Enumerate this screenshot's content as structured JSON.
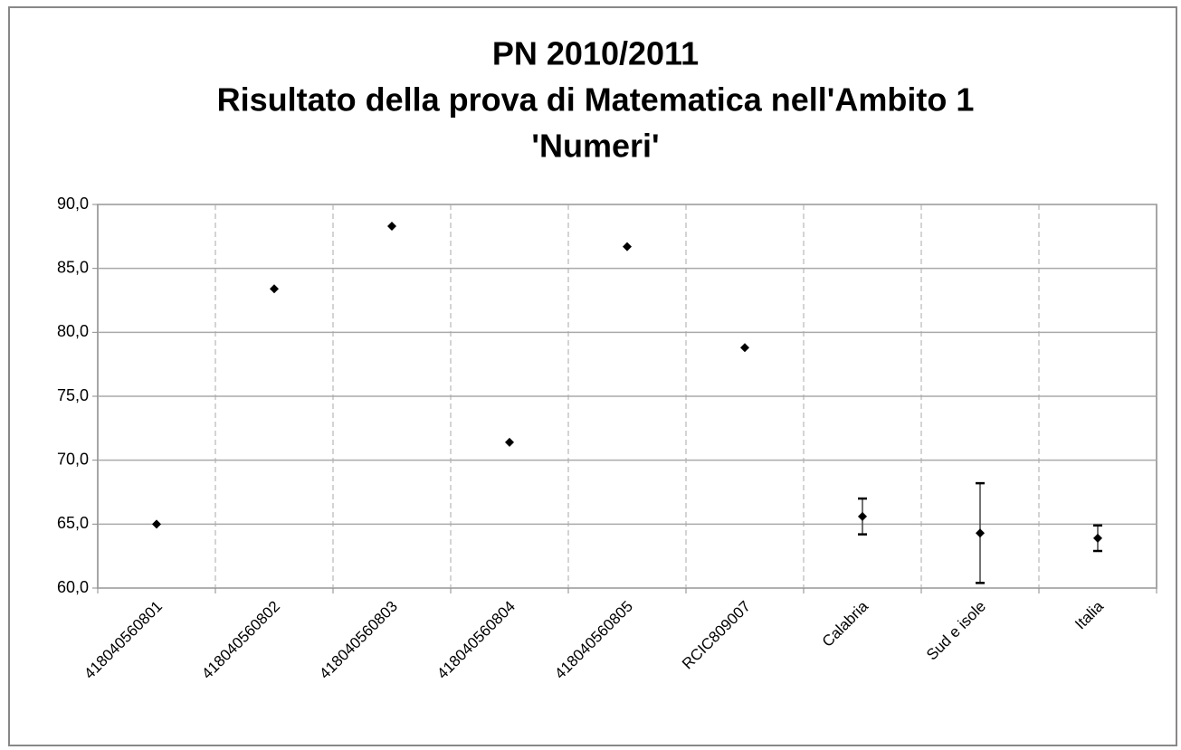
{
  "chart_data": {
    "type": "scatter",
    "title": [
      "PN 2010/2011",
      "Risultato della prova di Matematica nell'Ambito 1",
      "'Numeri'"
    ],
    "categories": [
      "418040560801",
      "418040560802",
      "418040560803",
      "418040560804",
      "418040560805",
      "RCIC809007",
      "Calabria",
      "Sud e isole",
      "Italia"
    ],
    "values": [
      65.0,
      83.4,
      88.3,
      71.4,
      86.7,
      78.8,
      65.6,
      64.3,
      63.9
    ],
    "errors": [
      null,
      null,
      null,
      null,
      null,
      null,
      1.4,
      3.9,
      1.0
    ],
    "color": "#000000",
    "ylim": [
      60,
      90
    ],
    "yticks": [
      {
        "value": 60,
        "label": "60,0"
      },
      {
        "value": 65,
        "label": "65,0"
      },
      {
        "value": 70,
        "label": "70,0"
      },
      {
        "value": 75,
        "label": "75,0"
      },
      {
        "value": 80,
        "label": "80,0"
      },
      {
        "value": 85,
        "label": "85,0"
      },
      {
        "value": 90,
        "label": "90,0"
      }
    ],
    "grid": true
  }
}
